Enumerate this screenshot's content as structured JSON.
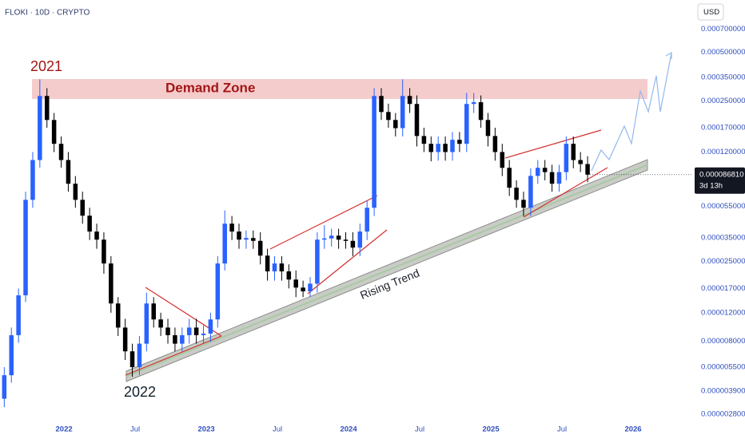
{
  "chart_data": {
    "type": "candlestick",
    "title": "FLOKI · 10D · CRYPTO",
    "currency": "USD",
    "log_y": true,
    "up_color": "#2962ff",
    "down_color": "#000000",
    "x": [
      2021.58,
      2021.63,
      2021.68,
      2021.73,
      2021.78,
      2021.83,
      2021.88,
      2021.93,
      2021.98,
      2022.03,
      2022.08,
      2022.13,
      2022.18,
      2022.23,
      2022.28,
      2022.33,
      2022.38,
      2022.43,
      2022.48,
      2022.53,
      2022.58,
      2022.63,
      2022.68,
      2022.73,
      2022.78,
      2022.83,
      2022.88,
      2022.93,
      2022.98,
      2023.03,
      2023.08,
      2023.13,
      2023.18,
      2023.23,
      2023.28,
      2023.33,
      2023.38,
      2023.43,
      2023.48,
      2023.53,
      2023.58,
      2023.63,
      2023.68,
      2023.73,
      2023.78,
      2023.83,
      2023.88,
      2023.93,
      2023.98,
      2024.03,
      2024.08,
      2024.13,
      2024.18,
      2024.23,
      2024.28,
      2024.33,
      2024.38,
      2024.43,
      2024.48,
      2024.53,
      2024.58,
      2024.63,
      2024.68,
      2024.73,
      2024.78,
      2024.83,
      2024.88,
      2024.93,
      2024.98,
      2025.03,
      2025.08,
      2025.13,
      2025.18,
      2025.23,
      2025.28,
      2025.33,
      2025.38,
      2025.43,
      2025.48,
      2025.53,
      2025.58,
      2025.63,
      2025.68
    ],
    "open": [
      3.5e-06,
      4.9e-06,
      8.7e-06,
      1.54e-05,
      6.05e-05,
      0.000107,
      0.000268,
      0.00019,
      0.000135,
      0.000107,
      7.62e-05,
      6.05e-05,
      4.82e-05,
      3.84e-05,
      3.42e-05,
      2.43e-05,
      1.37e-05,
      9.7e-06,
      6.9e-06,
      5.5e-06,
      7.7e-06,
      1.37e-05,
      1.09e-05,
      9.7e-06,
      8.7e-06,
      7.7e-06,
      8.7e-06,
      9.7e-06,
      8.7e-06,
      8.9e-06,
      1.09e-05,
      2.43e-05,
      4.3e-05,
      3.84e-05,
      3.42e-05,
      3.5e-05,
      3.36e-05,
      2.72e-05,
      2.17e-05,
      2.43e-05,
      2.17e-05,
      1.93e-05,
      1.72e-05,
      1.63e-05,
      1.82e-05,
      3.42e-05,
      3.48e-05,
      3.62e-05,
      3.42e-05,
      3.36e-05,
      3.05e-05,
      3.84e-05,
      5.4e-05,
      0.000268,
      0.000213,
      0.00019,
      0.000169,
      0.000268,
      0.000239,
      0.000151,
      0.000135,
      0.00012,
      0.000135,
      0.00012,
      0.000143,
      0.000135,
      0.000239,
      0.000245,
      0.00019,
      0.000151,
      0.00012,
      9.57e-05,
      7.2e-05,
      6.05e-05,
      5.4e-05,
      8.53e-05,
      9.57e-05,
      9e-05,
      7.62e-05,
      9e-05,
      0.000135,
      0.000107,
      0.000101
    ],
    "high": [
      5.5e-06,
      9.7e-06,
      1.7e-05,
      6.8e-05,
      0.00012,
      0.00034,
      0.0003,
      0.00021,
      0.00015,
      0.00012,
      8.5e-05,
      6.8e-05,
      5.4e-05,
      4.3e-05,
      3.8e-05,
      2.7e-05,
      1.5e-05,
      1.1e-05,
      7.7e-06,
      8.6e-06,
      1.6e-05,
      1.5e-05,
      1.2e-05,
      1.1e-05,
      9.7e-06,
      9.7e-06,
      1.1e-05,
      1.1e-05,
      1e-05,
      1.2e-05,
      2.7e-05,
      5.2e-05,
      4.8e-05,
      4.3e-05,
      3.9e-05,
      3.9e-05,
      3.8e-05,
      3e-05,
      2.7e-05,
      2.7e-05,
      2.4e-05,
      2.2e-05,
      1.9e-05,
      2e-05,
      3.8e-05,
      4.2e-05,
      4e-05,
      4e-05,
      3.8e-05,
      3.8e-05,
      4.3e-05,
      6e-05,
      0.0003,
      0.0003,
      0.00024,
      0.00021,
      0.00034,
      0.0003,
      0.00027,
      0.00017,
      0.00015,
      0.00015,
      0.00015,
      0.00016,
      0.00016,
      0.00028,
      0.00028,
      0.00027,
      0.00021,
      0.00017,
      0.000135,
      0.000107,
      8e-05,
      6.8e-05,
      9.5e-05,
      0.000107,
      0.000107,
      0.0001,
      0.0001,
      0.00015,
      0.00015,
      0.00012,
      0.000113
    ],
    "low": [
      3.1e-06,
      4.4e-06,
      7.8e-06,
      1.4e-05,
      5.4e-05,
      9.6e-05,
      0.00017,
      0.00012,
      9.6e-05,
      6.8e-05,
      5.4e-05,
      4.3e-05,
      3.4e-05,
      3e-05,
      2.1e-05,
      1.2e-05,
      8.6e-06,
      6.1e-06,
      4.8e-06,
      4.9e-06,
      6.9e-06,
      9.7e-06,
      8.6e-06,
      7.7e-06,
      6.9e-06,
      6.9e-06,
      7.7e-06,
      7.7e-06,
      7.7e-06,
      7.9e-06,
      9.7e-06,
      2.2e-05,
      3.4e-05,
      3e-05,
      3e-05,
      3e-05,
      2.4e-05,
      1.9e-05,
      1.9e-05,
      1.9e-05,
      1.7e-05,
      1.5e-05,
      1.5e-05,
      1.5e-05,
      1.6e-05,
      3e-05,
      3.1e-05,
      3e-05,
      3e-05,
      2.7e-05,
      2.7e-05,
      3.4e-05,
      4.8e-05,
      0.00019,
      0.00017,
      0.00015,
      0.00015,
      0.00021,
      0.00013,
      0.00012,
      0.000105,
      0.000106,
      0.000106,
      0.000106,
      0.00012,
      0.00012,
      0.00021,
      0.00017,
      0.00013,
      0.000106,
      8.5e-05,
      6.4e-05,
      5.4e-05,
      4.8e-05,
      4.8e-05,
      7.6e-05,
      8e-05,
      6.8e-05,
      6.8e-05,
      8e-05,
      9.5e-05,
      9e-05,
      7.8e-05
    ],
    "close": [
      4.9e-06,
      8.7e-06,
      1.54e-05,
      6.05e-05,
      0.000107,
      0.000268,
      0.00019,
      0.000135,
      0.000107,
      7.62e-05,
      6.05e-05,
      4.82e-05,
      3.84e-05,
      3.42e-05,
      2.43e-05,
      1.37e-05,
      9.7e-06,
      6.9e-06,
      5.5e-06,
      7.7e-06,
      1.37e-05,
      1.09e-05,
      9.7e-06,
      8.7e-06,
      7.7e-06,
      8.7e-06,
      9.7e-06,
      8.7e-06,
      8.9e-06,
      1.09e-05,
      2.43e-05,
      4.3e-05,
      3.84e-05,
      3.42e-05,
      3.5e-05,
      3.36e-05,
      2.72e-05,
      2.17e-05,
      2.43e-05,
      2.17e-05,
      1.93e-05,
      1.72e-05,
      1.63e-05,
      1.82e-05,
      3.42e-05,
      3.48e-05,
      3.62e-05,
      3.42e-05,
      3.36e-05,
      3.05e-05,
      3.84e-05,
      5.4e-05,
      0.000268,
      0.000213,
      0.00019,
      0.000169,
      0.000268,
      0.000239,
      0.000151,
      0.000135,
      0.00012,
      0.000135,
      0.00012,
      0.000143,
      0.000135,
      0.000239,
      0.000245,
      0.00019,
      0.000151,
      0.00012,
      9.57e-05,
      7.2e-05,
      6.05e-05,
      5.4e-05,
      8.53e-05,
      9.57e-05,
      9e-05,
      7.62e-05,
      9e-05,
      0.000135,
      0.000107,
      0.000101,
      8.681e-05
    ],
    "xlim": [
      2021.55,
      2026.41
    ],
    "xticks": [
      {
        "value": 2022,
        "label": "2022"
      },
      {
        "value": 2022.5,
        "label": "Jul"
      },
      {
        "value": 2023,
        "label": "2023"
      },
      {
        "value": 2023.5,
        "label": "Jul"
      },
      {
        "value": 2024,
        "label": "2024"
      },
      {
        "value": 2024.5,
        "label": "Jul"
      },
      {
        "value": 2025,
        "label": "2025"
      },
      {
        "value": 2025.5,
        "label": "Jul"
      },
      {
        "value": 2026,
        "label": "2026"
      }
    ],
    "ylim": [
      2.47e-06,
      0.00106
    ],
    "yticks": [
      {
        "value": 0.0007,
        "label": "0.000700000"
      },
      {
        "value": 0.0005,
        "label": "0.000500000"
      },
      {
        "value": 0.00035,
        "label": "0.000350000"
      },
      {
        "value": 0.00025,
        "label": "0.000250000"
      },
      {
        "value": 0.00017,
        "label": "0.000170000"
      },
      {
        "value": 0.00012,
        "label": "0.000120000"
      },
      {
        "value": 5.5e-05,
        "label": "0.000055000"
      },
      {
        "value": 3.5e-05,
        "label": "0.000035000"
      },
      {
        "value": 2.5e-05,
        "label": "0.000025000"
      },
      {
        "value": 1.7e-05,
        "label": "0.000017000"
      },
      {
        "value": 1.2e-05,
        "label": "0.000012000"
      },
      {
        "value": 8e-06,
        "label": "0.000008000"
      },
      {
        "value": 5.5e-06,
        "label": "0.000005500"
      },
      {
        "value": 3.9e-06,
        "label": "0.000003900"
      },
      {
        "value": 2.8e-06,
        "label": "0.000002800"
      }
    ],
    "last_price": {
      "value": 8.681e-05,
      "label": "0.000086810"
    },
    "countdown": "3d 13h",
    "annotations": [
      "2021",
      "Demand Zone",
      "Rising Trend",
      "2022"
    ]
  }
}
